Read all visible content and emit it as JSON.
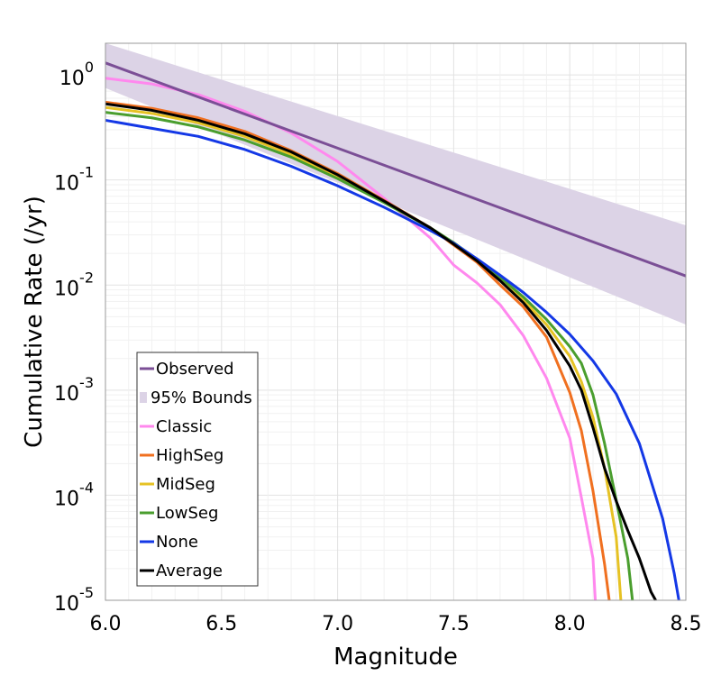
{
  "chart_data": {
    "type": "line",
    "title": "",
    "xlabel": "Magnitude",
    "ylabel": "Cumulative Rate (/yr)",
    "xlim": [
      6.0,
      8.5
    ],
    "ylim": [
      1e-05,
      2
    ],
    "yscale": "log",
    "grid": true,
    "legend_position": "bottom-left",
    "x_ticks": [
      "6.0",
      "6.5",
      "7.0",
      "7.5",
      "8.0",
      "8.5"
    ],
    "y_ticks": [
      {
        "value": 1,
        "base": "10",
        "exp": "0"
      },
      {
        "value": 0.1,
        "base": "10",
        "exp": "-1"
      },
      {
        "value": 0.01,
        "base": "10",
        "exp": "-2"
      },
      {
        "value": 0.001,
        "base": "10",
        "exp": "-3"
      },
      {
        "value": 0.0001,
        "base": "10",
        "exp": "-4"
      },
      {
        "value": 1e-05,
        "base": "10",
        "exp": "-5"
      }
    ],
    "bounds": {
      "name": "95% Bounds",
      "color": "#dcd3e6",
      "x": [
        6.0,
        8.5
      ],
      "upper": [
        2.0,
        0.037
      ],
      "lower": [
        0.75,
        0.0042
      ]
    },
    "series": [
      {
        "name": "Observed",
        "color": "#7b4f96",
        "x": [
          6.0,
          8.5
        ],
        "y": [
          1.3,
          0.0122
        ]
      },
      {
        "name": "Classic",
        "color": "#ff88ee",
        "x": [
          6.0,
          6.2,
          6.4,
          6.6,
          6.8,
          7.0,
          7.2,
          7.4,
          7.5,
          7.6,
          7.7,
          7.8,
          7.9,
          8.0,
          8.05,
          8.1,
          8.11
        ],
        "y": [
          0.93,
          0.82,
          0.65,
          0.45,
          0.28,
          0.15,
          0.067,
          0.028,
          0.0155,
          0.0105,
          0.0065,
          0.0033,
          0.0013,
          0.00035,
          9.5e-05,
          2.5e-05,
          1e-05
        ]
      },
      {
        "name": "HighSeg",
        "color": "#f07020",
        "x": [
          6.0,
          6.2,
          6.4,
          6.6,
          6.8,
          7.0,
          7.2,
          7.4,
          7.5,
          7.6,
          7.7,
          7.8,
          7.9,
          8.0,
          8.05,
          8.1,
          8.15,
          8.17
        ],
        "y": [
          0.55,
          0.48,
          0.39,
          0.29,
          0.19,
          0.115,
          0.064,
          0.035,
          0.024,
          0.0165,
          0.01,
          0.0062,
          0.0032,
          0.00095,
          0.00041,
          0.00011,
          2.2e-05,
          1e-05
        ]
      },
      {
        "name": "MidSeg",
        "color": "#e6c224",
        "x": [
          6.0,
          6.2,
          6.4,
          6.6,
          6.8,
          7.0,
          7.2,
          7.4,
          7.5,
          7.6,
          7.7,
          7.8,
          7.9,
          8.0,
          8.05,
          8.1,
          8.15,
          8.2,
          8.22
        ],
        "y": [
          0.49,
          0.43,
          0.35,
          0.26,
          0.175,
          0.107,
          0.062,
          0.035,
          0.025,
          0.0172,
          0.0113,
          0.0072,
          0.0042,
          0.0021,
          0.0012,
          0.00055,
          0.00018,
          4e-05,
          1e-05
        ]
      },
      {
        "name": "LowSeg",
        "color": "#4a9e2e",
        "x": [
          6.0,
          6.2,
          6.4,
          6.6,
          6.8,
          7.0,
          7.2,
          7.4,
          7.5,
          7.6,
          7.7,
          7.8,
          7.9,
          8.0,
          8.05,
          8.1,
          8.15,
          8.2,
          8.25,
          8.27
        ],
        "y": [
          0.44,
          0.39,
          0.32,
          0.24,
          0.165,
          0.103,
          0.061,
          0.035,
          0.0253,
          0.0176,
          0.0118,
          0.0077,
          0.0047,
          0.0026,
          0.0018,
          0.0009,
          0.00031,
          9e-05,
          2.5e-05,
          1e-05
        ]
      },
      {
        "name": "None",
        "color": "#1438e6",
        "x": [
          6.0,
          6.2,
          6.4,
          6.6,
          6.8,
          7.0,
          7.2,
          7.4,
          7.5,
          7.6,
          7.7,
          7.8,
          7.9,
          8.0,
          8.1,
          8.2,
          8.3,
          8.4,
          8.45,
          8.47
        ],
        "y": [
          0.37,
          0.31,
          0.26,
          0.195,
          0.135,
          0.088,
          0.055,
          0.033,
          0.025,
          0.0178,
          0.0124,
          0.0085,
          0.0055,
          0.0034,
          0.0019,
          0.00092,
          0.00031,
          6e-05,
          1.8e-05,
          1e-05
        ]
      },
      {
        "name": "Average",
        "color": "#000000",
        "x": [
          6.0,
          6.2,
          6.4,
          6.6,
          6.8,
          7.0,
          7.2,
          7.4,
          7.5,
          7.6,
          7.7,
          7.8,
          7.9,
          8.0,
          8.05,
          8.1,
          8.15,
          8.2,
          8.25,
          8.3,
          8.35,
          8.37
        ],
        "y": [
          0.53,
          0.46,
          0.37,
          0.275,
          0.185,
          0.112,
          0.063,
          0.035,
          0.0245,
          0.017,
          0.011,
          0.0068,
          0.0037,
          0.0017,
          0.001,
          0.00044,
          0.00018,
          8.8e-05,
          4.6e-05,
          2.5e-05,
          1.2e-05,
          1e-05
        ]
      }
    ]
  }
}
